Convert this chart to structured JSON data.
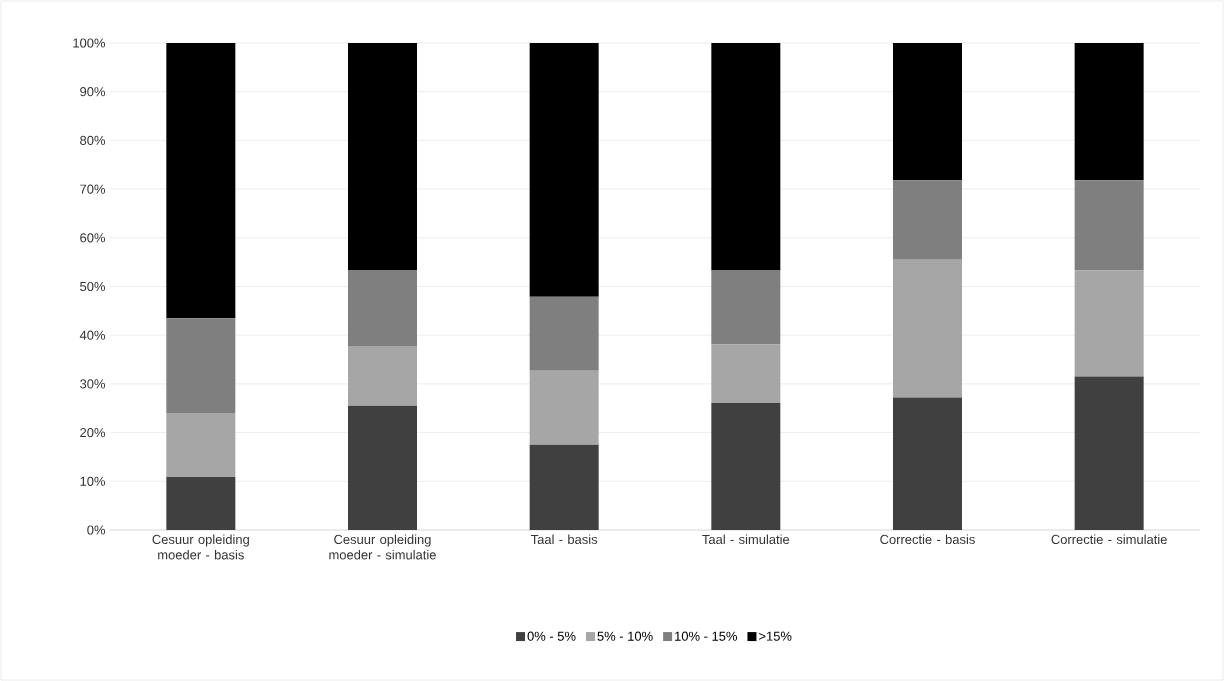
{
  "chart_data": {
    "type": "bar",
    "stacked": true,
    "categories": [
      "Cesuur opleiding moeder - basis",
      "Cesuur opleiding moeder - simulatie",
      "Taal - basis",
      "Taal - simulatie",
      "Correctie - basis",
      "Correctie - simulatie"
    ],
    "series": [
      {
        "name": "0% - 5%",
        "color": "#404040",
        "values": [
          10.9,
          25.5,
          17.5,
          26.1,
          27.2,
          31.5
        ]
      },
      {
        "name": "5% - 10%",
        "color": "#a6a6a6",
        "values": [
          13.1,
          12.3,
          15.2,
          12.0,
          28.3,
          21.8
        ]
      },
      {
        "name": "10% - 15%",
        "color": "#7f7f7f",
        "values": [
          19.5,
          15.5,
          15.2,
          15.2,
          16.3,
          18.5
        ]
      },
      {
        "name": ">15%",
        "color": "#000000",
        "values": [
          56.5,
          46.7,
          52.1,
          46.7,
          28.2,
          28.2
        ]
      }
    ],
    "ylim": [
      0,
      100
    ],
    "yticks": [
      {
        "value": 0,
        "label": "0%"
      },
      {
        "value": 10,
        "label": "10%"
      },
      {
        "value": 20,
        "label": "20%"
      },
      {
        "value": 30,
        "label": "30%"
      },
      {
        "value": 40,
        "label": "40%"
      },
      {
        "value": 50,
        "label": "50%"
      },
      {
        "value": 60,
        "label": "60%"
      },
      {
        "value": 70,
        "label": "70%"
      },
      {
        "value": 80,
        "label": "80%"
      },
      {
        "value": 90,
        "label": "90%"
      },
      {
        "value": 100,
        "label": "100%"
      }
    ],
    "grid": "y",
    "legend": "bottom"
  }
}
